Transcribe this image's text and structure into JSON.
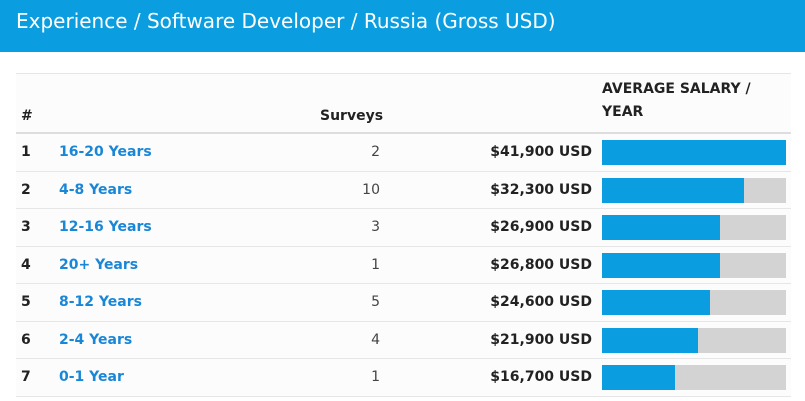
{
  "header": {
    "title": "Experience / Software Developer / Russia (Gross USD)"
  },
  "table": {
    "columns": {
      "rank": "#",
      "surveys": "Surveys",
      "salary": "AVERAGE SALARY / YEAR"
    },
    "rows": [
      {
        "rank": "1",
        "label": "16-20 Years",
        "surveys": "2",
        "salary": "$41,900 USD",
        "fraction": 1.0
      },
      {
        "rank": "2",
        "label": "4-8 Years",
        "surveys": "10",
        "salary": "$32,300 USD",
        "fraction": 0.771
      },
      {
        "rank": "3",
        "label": "12-16 Years",
        "surveys": "3",
        "salary": "$26,900 USD",
        "fraction": 0.642
      },
      {
        "rank": "4",
        "label": "20+ Years",
        "surveys": "1",
        "salary": "$26,800 USD",
        "fraction": 0.64
      },
      {
        "rank": "5",
        "label": "8-12 Years",
        "surveys": "5",
        "salary": "$24,600 USD",
        "fraction": 0.587
      },
      {
        "rank": "6",
        "label": "2-4 Years",
        "surveys": "4",
        "salary": "$21,900 USD",
        "fraction": 0.523
      },
      {
        "rank": "7",
        "label": "0-1 Year",
        "surveys": "1",
        "salary": "$16,700 USD",
        "fraction": 0.399
      }
    ]
  }
}
